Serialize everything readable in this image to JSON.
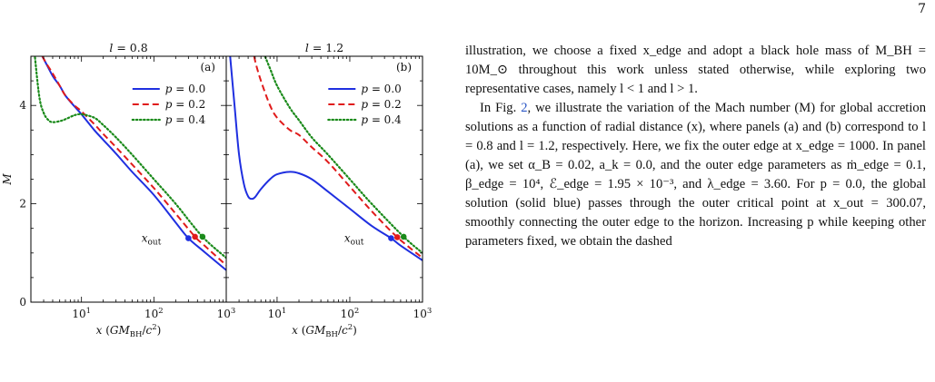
{
  "page": {
    "number": "7"
  },
  "figure": {
    "panels": [
      {
        "title": "l = 0.8",
        "label": "(a)"
      },
      {
        "title": "l = 1.2",
        "label": "(b)"
      }
    ],
    "x_axis_label": "x (GM_BH/c²)",
    "y_axis_label": "M",
    "x_tick_labels": [
      "10¹",
      "10²",
      "10³"
    ],
    "y_tick_labels": [
      "0",
      "2",
      "4"
    ],
    "critical_point_label": "x_out",
    "legend": [
      "p = 0.0",
      "p = 0.2",
      "p = 0.4"
    ]
  },
  "chart_data": [
    {
      "type": "line",
      "title": "l = 0.8",
      "panel_label": "(a)",
      "xlabel": "x (GM_BH/c²)",
      "ylabel": "M",
      "xscale": "log",
      "xlim": [
        2,
        1000
      ],
      "ylim": [
        0,
        5
      ],
      "legend_position": "upper-right",
      "series": [
        {
          "name": "p = 0.0",
          "color": "#1f2fe0",
          "style": "solid",
          "x": [
            2.4,
            3,
            4,
            5,
            6,
            8,
            10,
            15,
            20,
            30,
            50,
            100,
            200,
            300.07,
            500,
            1000
          ],
          "y": [
            5.2,
            4.95,
            4.6,
            4.4,
            4.2,
            3.98,
            3.82,
            3.5,
            3.3,
            3.02,
            2.65,
            2.18,
            1.62,
            1.3,
            1.02,
            0.65
          ]
        },
        {
          "name": "p = 0.2",
          "color": "#e01b1b",
          "style": "dashed",
          "x": [
            2.6,
            3,
            4,
            5,
            6,
            8,
            10,
            15,
            20,
            30,
            50,
            100,
            200,
            370,
            500,
            1000
          ],
          "y": [
            5.2,
            4.95,
            4.65,
            4.4,
            4.2,
            4.0,
            3.88,
            3.62,
            3.42,
            3.15,
            2.8,
            2.32,
            1.8,
            1.33,
            1.15,
            0.75
          ]
        },
        {
          "name": "p = 0.4",
          "color": "#1a8a1a",
          "style": "dotted",
          "x": [
            2.2,
            2.6,
            3,
            3.5,
            4,
            5,
            6,
            8,
            10,
            15,
            20,
            30,
            50,
            100,
            200,
            470,
            1000
          ],
          "y": [
            5.2,
            4.2,
            3.85,
            3.7,
            3.66,
            3.68,
            3.72,
            3.8,
            3.82,
            3.75,
            3.6,
            3.35,
            3.0,
            2.5,
            2.0,
            1.33,
            0.9
          ]
        }
      ],
      "critical_points": [
        {
          "series": "p = 0.0",
          "x": 300.07,
          "y": 1.3
        },
        {
          "series": "p = 0.2",
          "x": 370,
          "y": 1.33
        },
        {
          "series": "p = 0.4",
          "x": 470,
          "y": 1.33
        }
      ]
    },
    {
      "type": "line",
      "title": "l = 1.2",
      "panel_label": "(b)",
      "xlabel": "x (GM_BH/c²)",
      "ylabel": "M",
      "xscale": "log",
      "xlim": [
        2,
        1000
      ],
      "ylim": [
        0,
        5
      ],
      "legend_position": "upper-right",
      "series": [
        {
          "name": "p = 0.0",
          "color": "#1f2fe0",
          "style": "solid",
          "x": [
            2.2,
            2.6,
            3,
            3.5,
            4,
            4.5,
            5,
            6,
            8,
            10,
            15,
            20,
            30,
            50,
            100,
            200,
            370,
            500,
            1000
          ],
          "y": [
            5.2,
            4.0,
            3.0,
            2.4,
            2.15,
            2.1,
            2.14,
            2.3,
            2.5,
            2.6,
            2.65,
            2.62,
            2.5,
            2.25,
            1.9,
            1.55,
            1.3,
            1.15,
            0.85
          ]
        },
        {
          "name": "p = 0.2",
          "color": "#e01b1b",
          "style": "dashed",
          "x": [
            4.6,
            5,
            6,
            8,
            10,
            15,
            20,
            30,
            50,
            100,
            200,
            450,
            1000
          ],
          "y": [
            5.2,
            4.9,
            4.5,
            4.0,
            3.75,
            3.5,
            3.4,
            3.15,
            2.85,
            2.35,
            1.85,
            1.32,
            0.9
          ]
        },
        {
          "name": "p = 0.4",
          "color": "#1a8a1a",
          "style": "dotted",
          "x": [
            6,
            8,
            10,
            15,
            20,
            30,
            50,
            100,
            200,
            550,
            1000
          ],
          "y": [
            5.2,
            4.75,
            4.4,
            3.95,
            3.7,
            3.35,
            3.0,
            2.5,
            2.0,
            1.33,
            1.0
          ]
        }
      ],
      "critical_points": [
        {
          "series": "p = 0.0",
          "x": 370,
          "y": 1.3
        },
        {
          "series": "p = 0.2",
          "x": 450,
          "y": 1.32
        },
        {
          "series": "p = 0.4",
          "x": 550,
          "y": 1.33
        }
      ]
    }
  ],
  "text": {
    "p1": "illustration, we choose a fixed x_edge and adopt a black hole mass of M_BH = 10M_⊙ throughout this work unless stated otherwise, while exploring two representative cases, namely l < 1 and l > 1.",
    "p2_before_ref": "In Fig. ",
    "p2_ref": "2",
    "p2_after_ref": ", we illustrate the variation of the Mach number (M) for global accretion solutions as a function of radial distance (x), where panels (a) and (b) correspond to l = 0.8 and l = 1.2, respectively. Here, we fix the outer edge at x_edge = 1000. In panel (a), we set α_B = 0.02, a_k = 0.0, and the outer edge parameters as ṁ_edge = 0.1, β_edge = 10⁴, ℰ_edge = 1.95 × 10⁻³, and λ_edge = 3.60. For p = 0.0, the global solution (solid blue) passes through the outer critical point at x_out = 300.07, smoothly connecting the outer edge to the horizon. Increasing p while keeping other parameters fixed, we obtain the dashed"
  }
}
